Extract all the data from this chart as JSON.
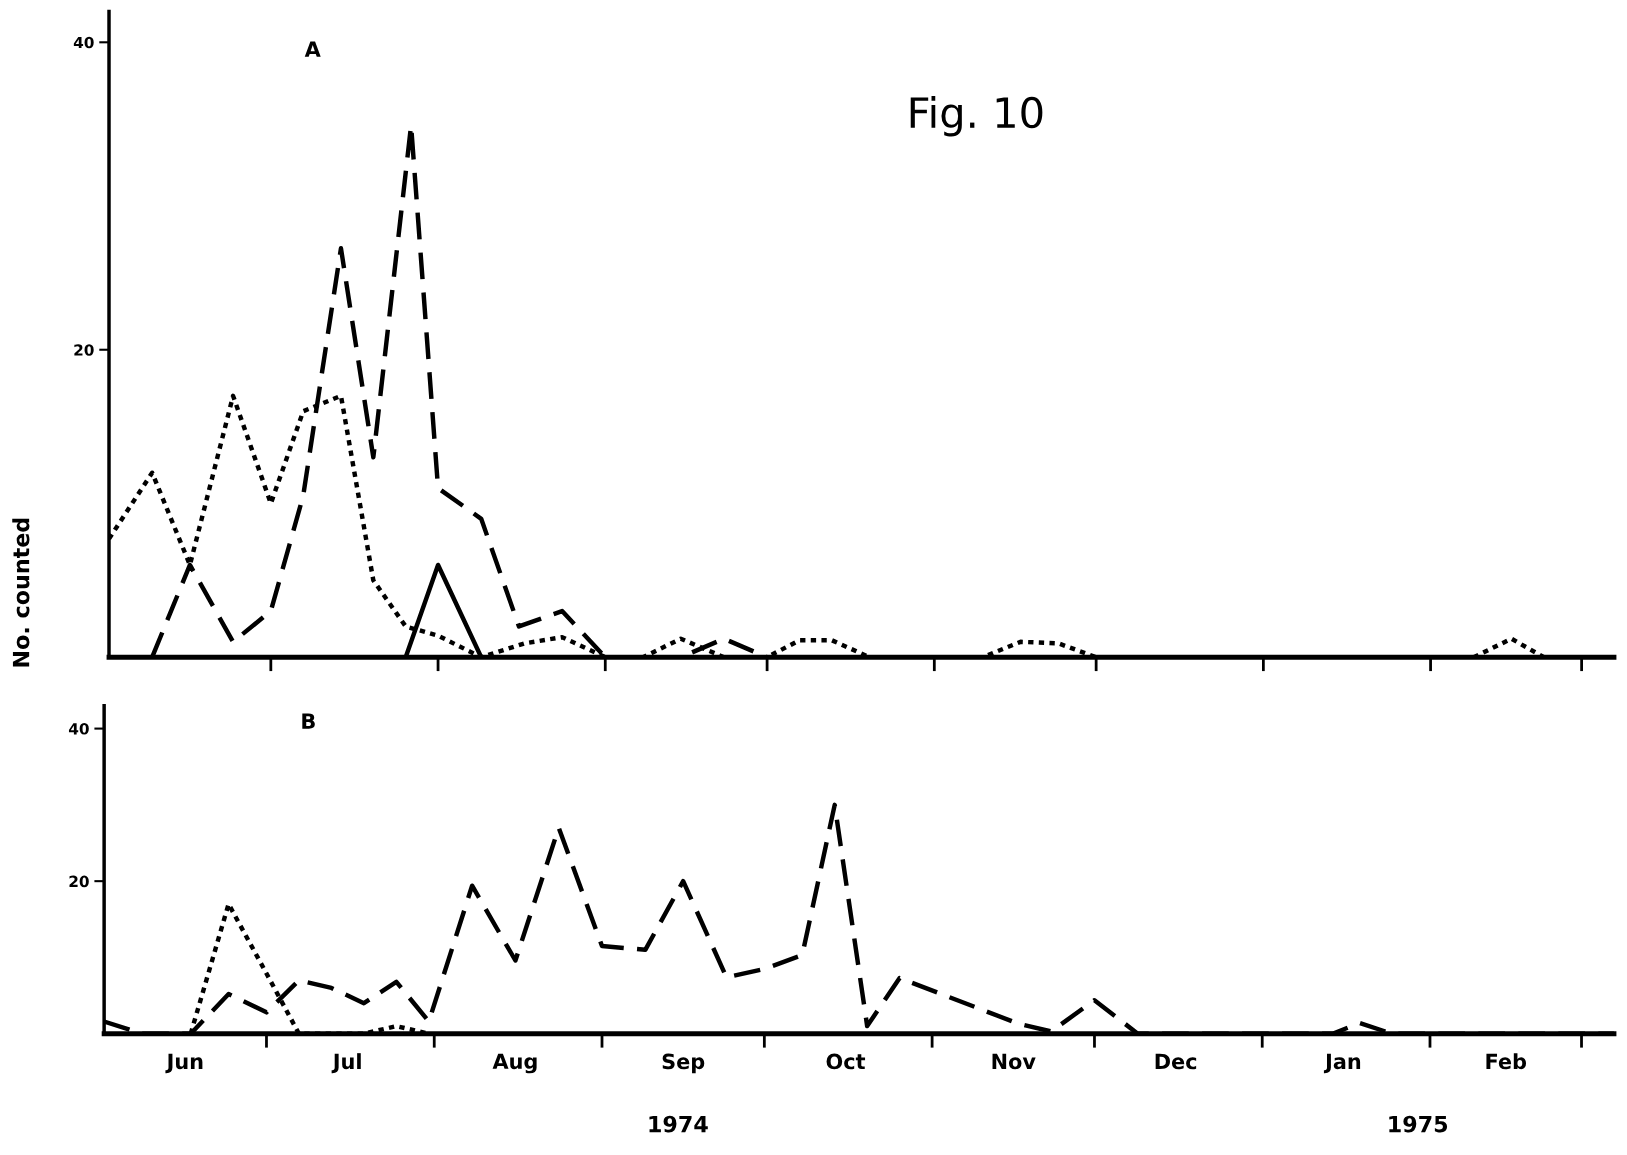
{
  "chart_data": [
    {
      "type": "line",
      "title": "A",
      "subtitle": "Fig. 10",
      "ylabel": "No. counted",
      "xlim": [
        "1974-06-01",
        "1975-03-07"
      ],
      "ylim": [
        0,
        42
      ],
      "yticks": [
        20,
        40
      ],
      "tick_labels": "y",
      "xticks": [
        {
          "value": "1974-07-01",
          "label": null
        },
        {
          "value": "1974-08-01",
          "label": null
        },
        {
          "value": "1974-09-01",
          "label": null
        },
        {
          "value": "1974-10-01",
          "label": null
        },
        {
          "value": "1974-11-01",
          "label": null
        },
        {
          "value": "1974-12-01",
          "label": null
        },
        {
          "value": "1975-01-01",
          "label": null
        },
        {
          "value": "1975-02-01",
          "label": null
        },
        {
          "value": "1975-03-01",
          "label": null
        }
      ],
      "series": [
        {
          "color": "#000000",
          "line_style": "dashed",
          "x": [
            "1974-06-09",
            "1974-06-16",
            "1974-06-24",
            "1974-07-01",
            "1974-07-07",
            "1974-07-14",
            "1974-07-20",
            "1974-07-27",
            "1974-08-01",
            "1974-08-09",
            "1974-08-16",
            "1974-08-24",
            "1974-09-01",
            "1974-09-15",
            "1974-09-23",
            "1974-10-01",
            "1975-03-07"
          ],
          "values": [
            0,
            6,
            1,
            3,
            10.5,
            26.6,
            13,
            34.6,
            11,
            9,
            2,
            3,
            0,
            0,
            1.2,
            0,
            0
          ]
        },
        {
          "color": "#000000",
          "line_style": "dotted",
          "x": [
            "1974-06-01",
            "1974-06-09",
            "1974-06-16",
            "1974-06-24",
            "1974-07-01",
            "1974-07-07",
            "1974-07-14",
            "1974-07-20",
            "1974-07-26",
            "1974-08-01",
            "1974-08-09",
            "1974-08-17",
            "1974-08-24",
            "1974-09-01",
            "1974-09-08",
            "1974-09-15",
            "1974-09-23",
            "1974-10-01",
            "1974-10-07",
            "1974-10-13",
            "1974-10-20",
            "1974-11-10",
            "1974-11-17",
            "1974-11-24",
            "1974-12-01",
            "1975-02-09",
            "1975-02-16",
            "1975-02-22",
            "1975-03-07"
          ],
          "values": [
            7.7,
            12,
            6,
            17,
            10,
            16,
            17,
            5,
            2,
            1.4,
            0,
            0.9,
            1.3,
            0,
            0,
            1.2,
            0,
            0,
            1.1,
            1.1,
            0,
            0,
            1,
            0.9,
            0,
            0,
            1.2,
            0,
            0
          ]
        },
        {
          "color": "#000000",
          "line_style": "solid",
          "x": [
            "1974-07-26",
            "1974-08-01",
            "1974-08-09"
          ],
          "values": [
            0,
            6,
            0
          ]
        }
      ]
    },
    {
      "type": "line",
      "title": "B",
      "xlim": [
        "1974-06-01",
        "1975-03-07"
      ],
      "ylim": [
        0,
        43
      ],
      "yticks": [
        20,
        40
      ],
      "xticks": [
        {
          "value": "1974-06-16",
          "label": "Jun"
        },
        {
          "value": "1974-07-01",
          "label": null
        },
        {
          "value": "1974-07-16",
          "label": "Jul"
        },
        {
          "value": "1974-08-01",
          "label": null
        },
        {
          "value": "1974-08-16",
          "label": "Aug"
        },
        {
          "value": "1974-09-01",
          "label": null
        },
        {
          "value": "1974-09-16",
          "label": "Sep"
        },
        {
          "value": "1974-10-01",
          "label": null
        },
        {
          "value": "1974-10-16",
          "label": "Oct"
        },
        {
          "value": "1974-11-01",
          "label": null
        },
        {
          "value": "1974-11-16",
          "label": "Nov"
        },
        {
          "value": "1974-12-01",
          "label": null
        },
        {
          "value": "1974-12-16",
          "label": "Dec"
        },
        {
          "value": "1975-01-01",
          "label": null
        },
        {
          "value": "1975-01-16",
          "label": "Jan"
        },
        {
          "value": "1975-02-01",
          "label": null
        },
        {
          "value": "1975-02-15",
          "label": "Feb"
        },
        {
          "value": "1975-03-01",
          "label": null
        }
      ],
      "annotations": [
        "1974",
        "1975"
      ],
      "series": [
        {
          "color": "#000000",
          "line_style": "dashed",
          "x": [
            "1974-06-01",
            "1974-06-08",
            "1974-06-17",
            "1974-06-24",
            "1974-07-01",
            "1974-07-07",
            "1974-07-13",
            "1974-07-19",
            "1974-07-25",
            "1974-07-31",
            "1974-08-08",
            "1974-08-16",
            "1974-08-24",
            "1974-09-01",
            "1974-09-09",
            "1974-09-16",
            "1974-09-24",
            "1974-10-01",
            "1974-10-08",
            "1974-10-14",
            "1974-10-20",
            "1974-10-26",
            "1974-11-17",
            "1974-11-23",
            "1974-12-01",
            "1974-12-09",
            "1975-01-14",
            "1975-01-19",
            "1975-01-25",
            "1975-03-07"
          ],
          "values": [
            1.6,
            0,
            0,
            5.2,
            2.8,
            7,
            6,
            4,
            6.8,
            1.6,
            19.4,
            9.6,
            27,
            11.5,
            11,
            20,
            7.4,
            8.5,
            10.3,
            30,
            1,
            7.3,
            1.3,
            0.3,
            4.4,
            0,
            0,
            1.4,
            0,
            0
          ]
        },
        {
          "color": "#000000",
          "line_style": "dotted",
          "x": [
            "1974-06-17",
            "1974-06-24",
            "1974-07-01",
            "1974-07-07",
            "1974-07-19",
            "1974-07-25",
            "1974-07-31"
          ],
          "values": [
            0,
            17,
            7.9,
            0,
            0,
            1,
            0
          ]
        }
      ]
    }
  ]
}
